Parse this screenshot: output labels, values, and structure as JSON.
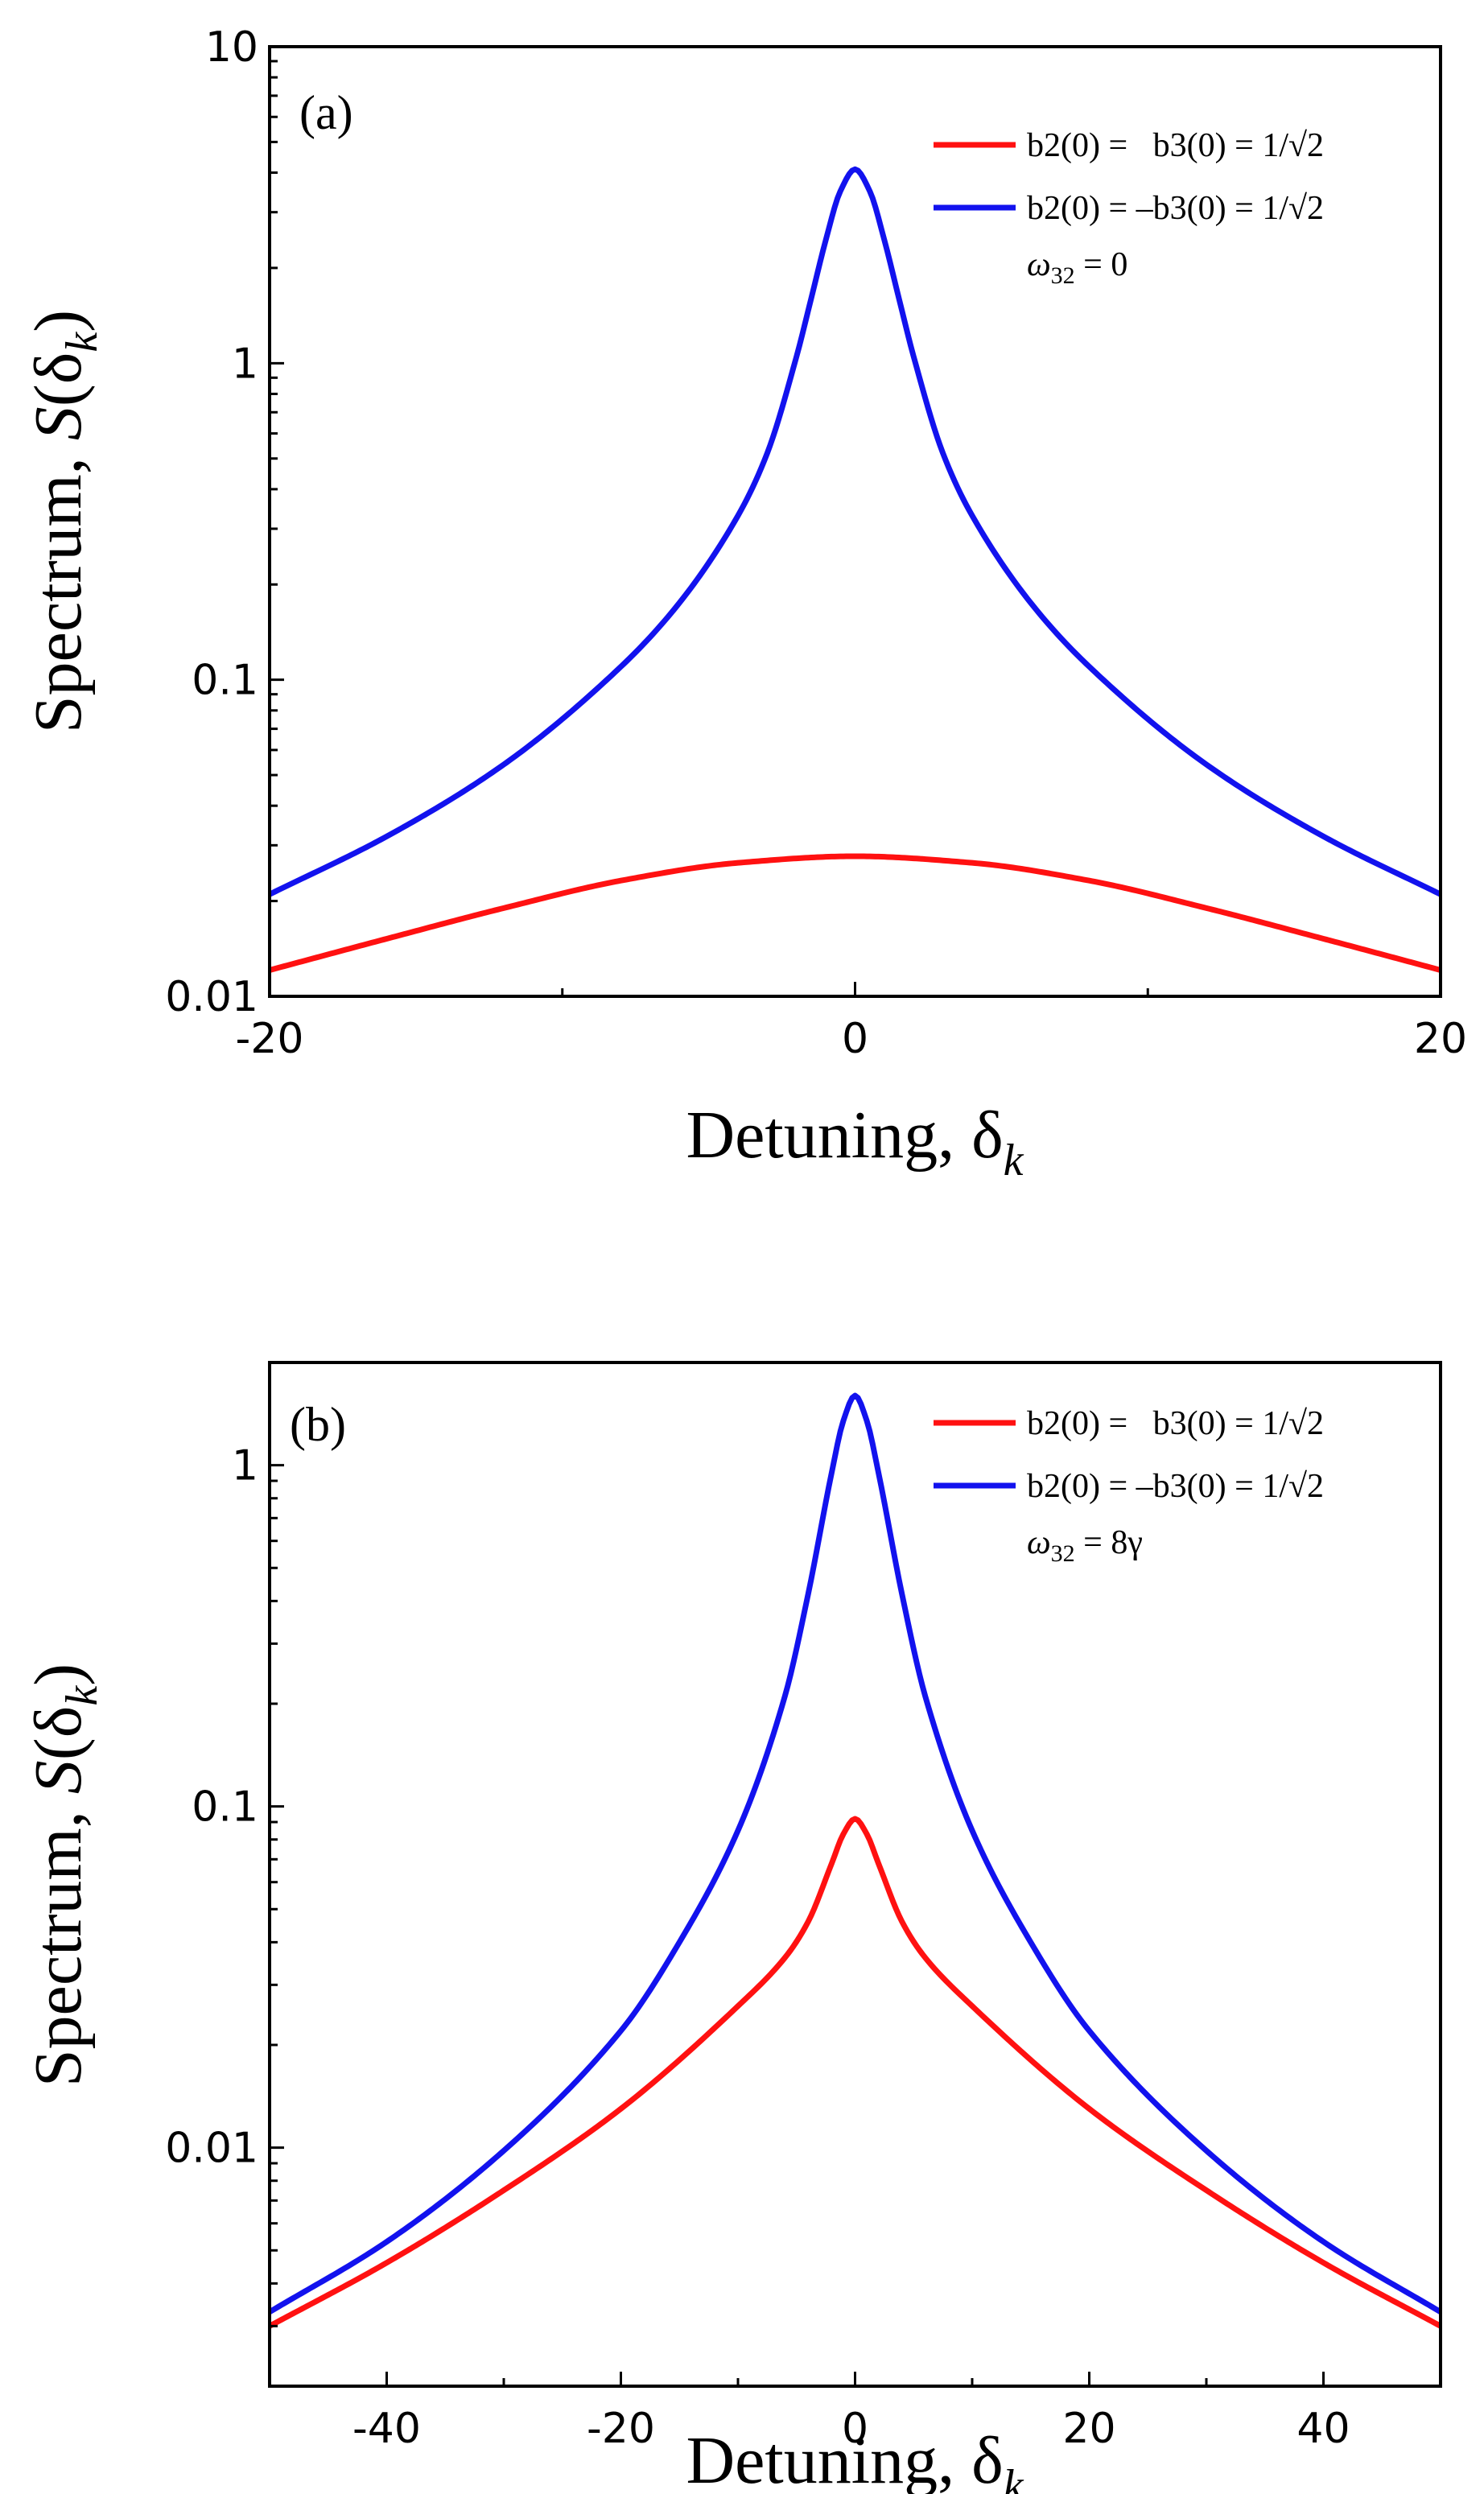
{
  "figure": {
    "background": "#ffffff",
    "red_color": "#ff1111",
    "blue_color": "#1212ee"
  },
  "chart_data": [
    {
      "type": "line",
      "panel_label": "(a)",
      "xlabel_main": "Detuning, δ",
      "xlabel_sub": "k",
      "ylabel_main": "Spectrum, ",
      "ylabel_S": "S",
      "ylabel_paren_open": "(δ",
      "ylabel_sub": "k",
      "ylabel_paren_close": ")",
      "yscale": "log",
      "xlim": [
        -20,
        20
      ],
      "ylim": [
        0.01,
        10
      ],
      "xticks": [
        -20,
        0,
        20
      ],
      "xtick_labels": [
        "-20",
        "0",
        "20"
      ],
      "xminor_step": 10,
      "yticks": [
        0.01,
        0.1,
        1,
        10
      ],
      "ytick_labels": [
        "0.01",
        "0.1",
        "1",
        "10"
      ],
      "legend": {
        "position": "top-right",
        "entries": [
          "b2(0) =   b3(0) = 1/√2",
          "b2(0) = –b3(0) = 1/√2"
        ],
        "note_symbol": "ω",
        "note_sub": "32",
        "note_rest": " = 0"
      },
      "series": [
        {
          "name": "b2(0) =   b3(0) = 1/√2",
          "color": "#ff1111",
          "x": [
            -20,
            -16,
            -12,
            -8,
            -4,
            0,
            4,
            8,
            12,
            16,
            20
          ],
          "y": [
            0.0121,
            0.0152,
            0.019,
            0.0232,
            0.0264,
            0.0277,
            0.0264,
            0.0232,
            0.019,
            0.0152,
            0.0121
          ]
        },
        {
          "name": "b2(0) = –b3(0) = 1/√2",
          "color": "#1212ee",
          "x": [
            -20,
            -16,
            -12,
            -8,
            -6,
            -4,
            -3,
            -2,
            -1.5,
            -1,
            -0.5,
            0,
            0.5,
            1,
            1.5,
            2,
            3,
            4,
            6,
            8,
            12,
            16,
            20
          ],
          "y": [
            0.021,
            0.032,
            0.054,
            0.11,
            0.175,
            0.33,
            0.52,
            1.05,
            1.6,
            2.45,
            3.5,
            4.1,
            3.5,
            2.45,
            1.6,
            1.05,
            0.52,
            0.33,
            0.175,
            0.11,
            0.054,
            0.032,
            0.021
          ]
        }
      ]
    },
    {
      "type": "line",
      "panel_label": "(b)",
      "xlabel_main": "Detuning, δ",
      "xlabel_sub": "k",
      "ylabel_main": "Spectrum, ",
      "ylabel_S": "S",
      "ylabel_paren_open": "(δ",
      "ylabel_sub": "k",
      "ylabel_paren_close": ")",
      "yscale": "log",
      "xlim": [
        -50,
        50
      ],
      "ylim": [
        0.002,
        2
      ],
      "xticks": [
        -40,
        -20,
        0,
        20,
        40
      ],
      "xtick_labels": [
        "-40",
        "-20",
        "0",
        "20",
        "40"
      ],
      "xminor_step": 10,
      "yticks": [
        0.01,
        0.1,
        1
      ],
      "ytick_labels": [
        "0.01",
        "0.1",
        "1"
      ],
      "legend": {
        "position": "top-right",
        "entries": [
          "b2(0) =   b3(0) = 1/√2",
          "b2(0) = –b3(0) = 1/√2"
        ],
        "note_symbol": "ω",
        "note_sub": "32",
        "note_rest": " = 8γ"
      },
      "series": [
        {
          "name": "b2(0) =   b3(0) = 1/√2",
          "color": "#ff1111",
          "x": [
            -50,
            -40,
            -30,
            -20,
            -10,
            -6,
            -4,
            -2,
            -1,
            0,
            1,
            2,
            4,
            6,
            10,
            20,
            30,
            40,
            50
          ],
          "y": [
            0.003,
            0.0046,
            0.0075,
            0.013,
            0.026,
            0.036,
            0.046,
            0.068,
            0.083,
            0.092,
            0.083,
            0.068,
            0.046,
            0.036,
            0.026,
            0.013,
            0.0075,
            0.0046,
            0.003
          ]
        },
        {
          "name": "b2(0) = –b3(0) = 1/√2",
          "color": "#1212ee",
          "x": [
            -50,
            -40,
            -30,
            -20,
            -15,
            -10,
            -6,
            -4,
            -2,
            -1,
            0,
            1,
            2,
            4,
            6,
            10,
            15,
            20,
            30,
            40,
            50
          ],
          "y": [
            0.0033,
            0.0053,
            0.0098,
            0.022,
            0.04,
            0.085,
            0.21,
            0.42,
            0.95,
            1.35,
            1.6,
            1.35,
            0.95,
            0.42,
            0.21,
            0.085,
            0.04,
            0.022,
            0.0098,
            0.0053,
            0.0033
          ]
        }
      ]
    }
  ]
}
